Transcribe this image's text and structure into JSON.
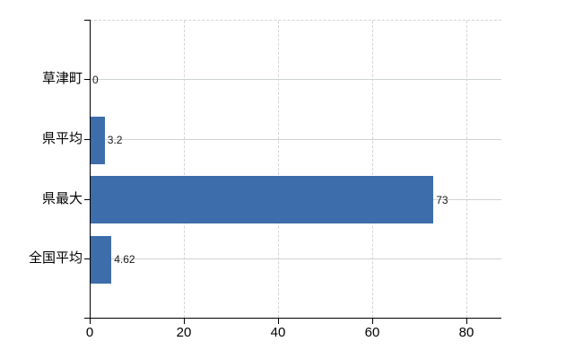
{
  "chart_data": {
    "type": "bar",
    "orientation": "horizontal",
    "title": "",
    "xlabel": "",
    "ylabel": "",
    "categories": [
      "草津町",
      "県平均",
      "県最大",
      "全国平均"
    ],
    "values": [
      0,
      3.2,
      73,
      4.62
    ],
    "value_labels": [
      "0",
      "3.2",
      "73",
      "4.62"
    ],
    "x_ticks": [
      0,
      20,
      40,
      60,
      80
    ],
    "x_tick_labels": [
      "0",
      "20",
      "40",
      "60",
      "80"
    ],
    "xlim": [
      0,
      87.4
    ],
    "grid": {
      "vertical": "dashed",
      "horizontal": "solid"
    },
    "legend": "none",
    "colors": {
      "bar": "#3d6dab",
      "axis": "#000000",
      "vertical_gridline": "#d5d2da",
      "horizontal_gridline": "#cdd3cd",
      "text": "#000000",
      "background": "#ffffff"
    }
  }
}
